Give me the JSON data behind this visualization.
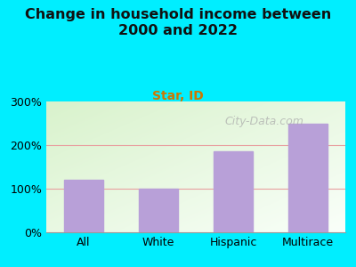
{
  "title": "Change in household income between\n2000 and 2022",
  "subtitle": "Star, ID",
  "categories": [
    "All",
    "White",
    "Hispanic",
    "Multirace"
  ],
  "values": [
    120,
    100,
    185,
    248
  ],
  "bar_color": "#b8a0d8",
  "background_outer": "#00eeff",
  "grid_color": "#e8a0a0",
  "title_fontsize": 11.5,
  "subtitle_fontsize": 10,
  "subtitle_color": "#cc7700",
  "tick_label_fontsize": 9,
  "ylim": [
    0,
    300
  ],
  "yticks": [
    0,
    100,
    200,
    300
  ],
  "watermark": "City-Data.com",
  "watermark_color": "#aaaaaa",
  "watermark_fontsize": 9
}
